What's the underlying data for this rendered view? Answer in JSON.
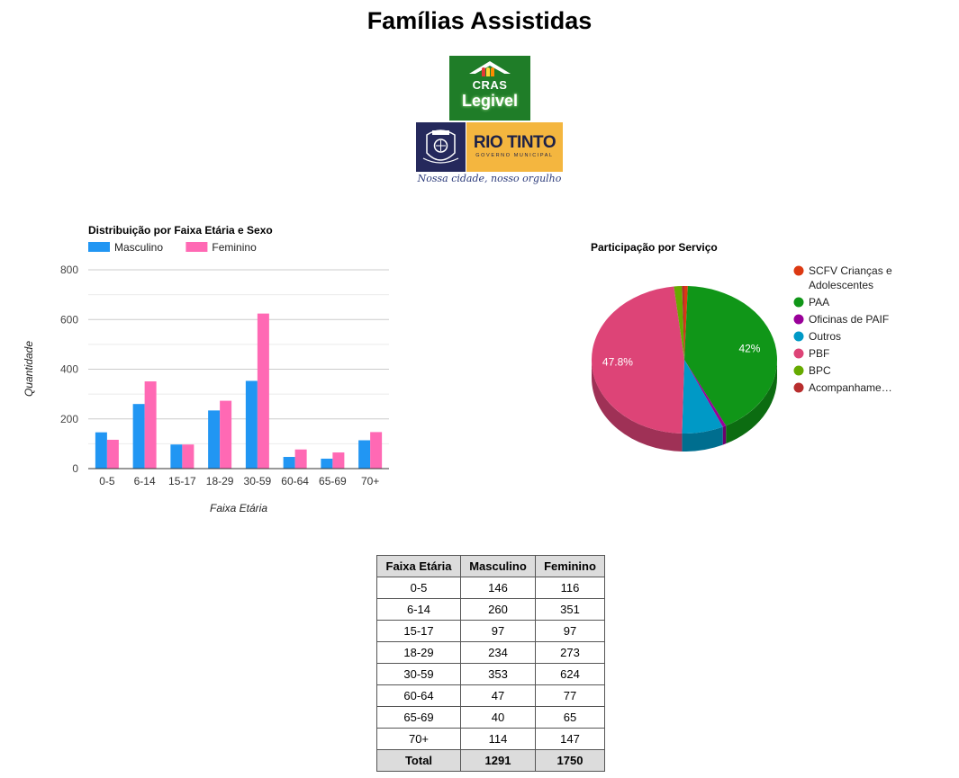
{
  "page": {
    "title": "Famílias Assistidas"
  },
  "logos": {
    "cras": {
      "line1": "CRAS",
      "line2": "Legivel",
      "colors": {
        "bg": "#1f7d28",
        "people": [
          "#e53935",
          "#fdd835",
          "#fb8c00"
        ]
      }
    },
    "rio_tinto": {
      "name": "RIO TINTO",
      "sub": "GOVERNO MUNICIPAL",
      "slogan": "Nossa cidade, nosso orgulho"
    }
  },
  "chart_data": [
    {
      "type": "bar",
      "title": "Distribuição por Faixa Etária e Sexo",
      "xlabel": "Faixa Etária",
      "ylabel": "Quantidade",
      "categories": [
        "0-5",
        "6-14",
        "15-17",
        "18-29",
        "30-59",
        "60-64",
        "65-69",
        "70+"
      ],
      "series": [
        {
          "name": "Masculino",
          "color": "#2196f3",
          "values": [
            146,
            260,
            97,
            234,
            353,
            47,
            40,
            114
          ]
        },
        {
          "name": "Feminino",
          "color": "#ff69b4",
          "values": [
            116,
            351,
            97,
            273,
            624,
            77,
            65,
            147
          ]
        }
      ],
      "ylim": [
        0,
        800
      ],
      "yticks": [
        0,
        200,
        400,
        600,
        800
      ],
      "grid": true,
      "legend": "top-left"
    },
    {
      "type": "pie",
      "title": "Participação por Serviço",
      "is3d": true,
      "legend": "right",
      "slices": [
        {
          "label": "SCFV Crianças e Adolescentes",
          "legend_lines": [
            "SCFV Crianças e",
            "Adolescentes"
          ],
          "value": 0.6,
          "color": "#dc3912"
        },
        {
          "label": "PAA",
          "legend_lines": [
            "PAA"
          ],
          "value": 42.0,
          "color": "#109618",
          "shown_label": "42%"
        },
        {
          "label": "Oficinas de PAIF",
          "legend_lines": [
            "Oficinas de PAIF"
          ],
          "value": 0.6,
          "color": "#990099"
        },
        {
          "label": "Outros",
          "legend_lines": [
            "Outros"
          ],
          "value": 7.2,
          "color": "#0099c6"
        },
        {
          "label": "PBF",
          "legend_lines": [
            "PBF"
          ],
          "value": 47.8,
          "color": "#dd4477",
          "shown_label": "47.8%"
        },
        {
          "label": "BPC",
          "legend_lines": [
            "BPC"
          ],
          "value": 1.4,
          "color": "#66aa00"
        },
        {
          "label": "Acompanhamento",
          "legend_lines": [
            "Acompanhame…"
          ],
          "value": 0.4,
          "color": "#b82e2e"
        }
      ]
    }
  ],
  "table": {
    "headers": [
      "Faixa Etária",
      "Masculino",
      "Feminino"
    ],
    "rows": [
      [
        "0-5",
        "146",
        "116"
      ],
      [
        "6-14",
        "260",
        "351"
      ],
      [
        "15-17",
        "97",
        "97"
      ],
      [
        "18-29",
        "234",
        "273"
      ],
      [
        "30-59",
        "353",
        "624"
      ],
      [
        "60-64",
        "47",
        "77"
      ],
      [
        "65-69",
        "40",
        "65"
      ],
      [
        "70+",
        "114",
        "147"
      ]
    ],
    "total": [
      "Total",
      "1291",
      "1750"
    ]
  }
}
